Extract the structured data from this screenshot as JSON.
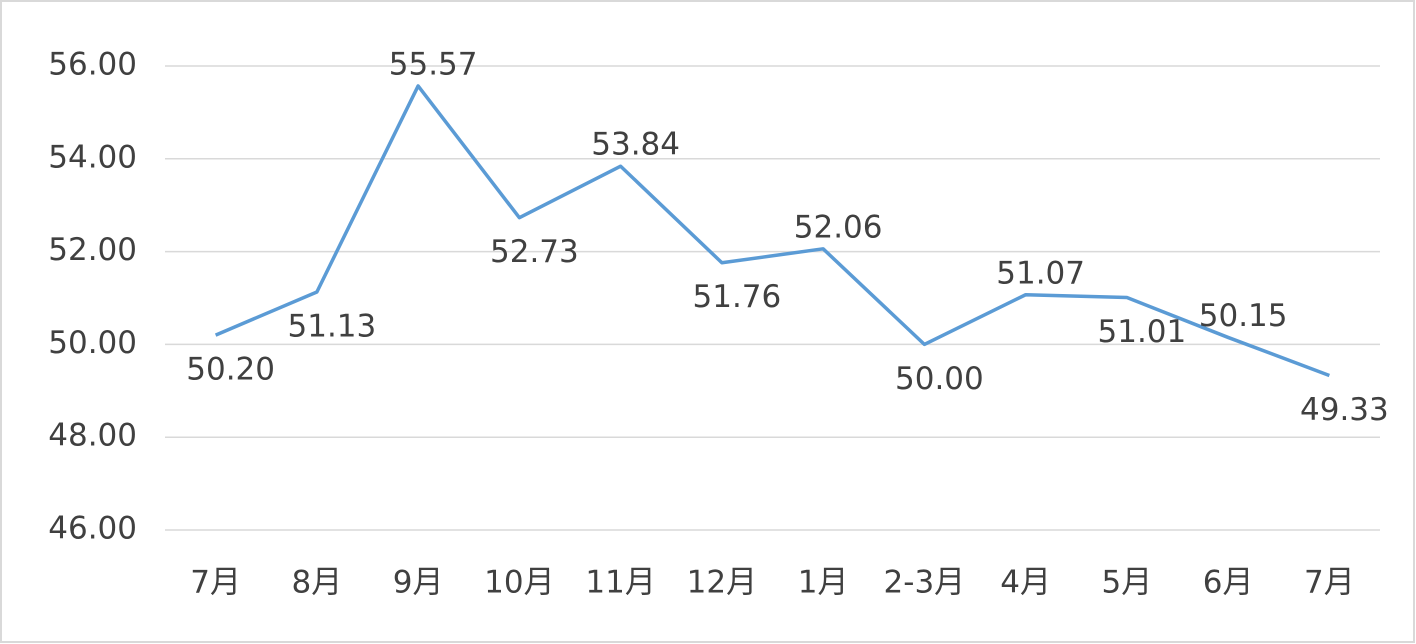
{
  "chart_data": {
    "type": "line",
    "categories": [
      "7月",
      "8月",
      "9月",
      "10月",
      "11月",
      "12月",
      "1月",
      "2-3月",
      "4月",
      "5月",
      "6月",
      "7月"
    ],
    "series": [
      {
        "color": "#5b9bd5",
        "values": [
          50.2,
          51.13,
          55.57,
          52.73,
          53.84,
          51.76,
          52.06,
          50.0,
          51.07,
          51.01,
          50.15,
          49.33
        ],
        "value_labels": [
          "50.20",
          "51.13",
          "55.57",
          "52.73",
          "53.84",
          "51.76",
          "52.06",
          "50.00",
          "51.07",
          "51.01",
          "50.15",
          "49.33"
        ]
      }
    ],
    "ylim": [
      46,
      56
    ],
    "yticks": [
      {
        "value": 46,
        "label": "46.00"
      },
      {
        "value": 48,
        "label": "48.00"
      },
      {
        "value": 50,
        "label": "50.00"
      },
      {
        "value": 52,
        "label": "52.00"
      },
      {
        "value": 54,
        "label": "54.00"
      },
      {
        "value": 56,
        "label": "56.00"
      }
    ],
    "grid": true
  }
}
